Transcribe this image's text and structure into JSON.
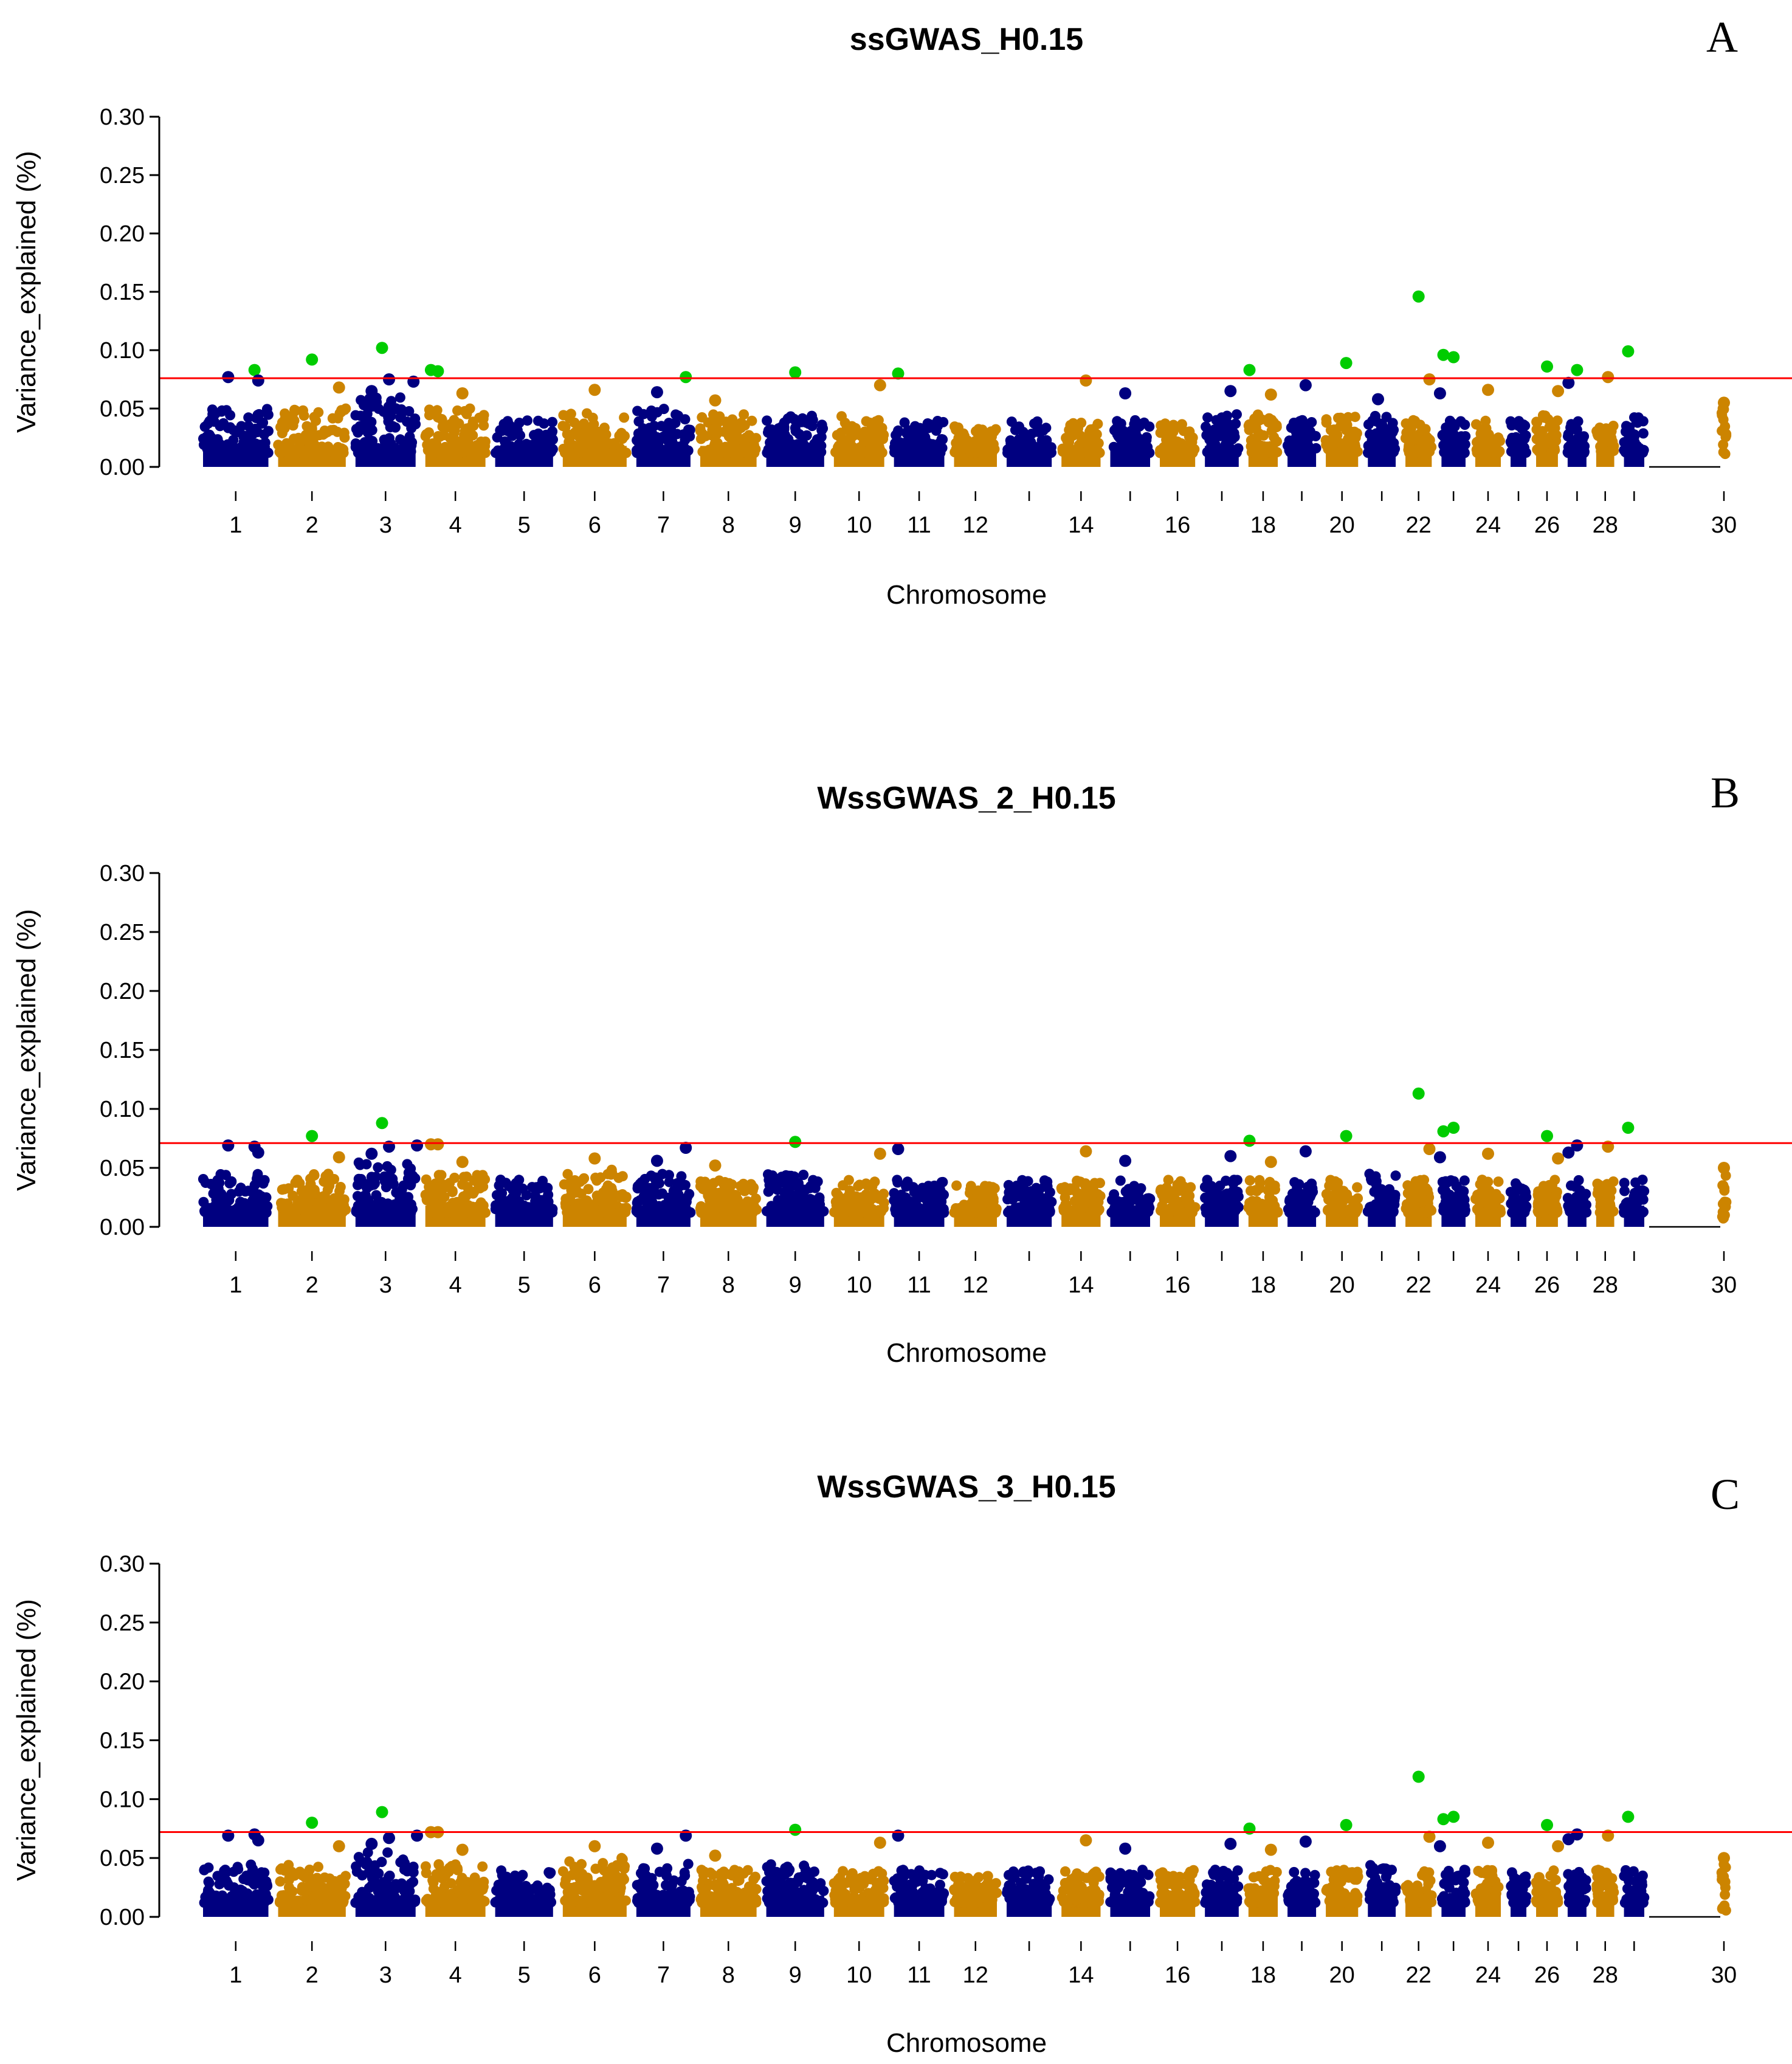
{
  "colors": {
    "navy": "#000080",
    "orange": "#CC8400",
    "green": "#00CC00",
    "threshold": "#FF0000",
    "axis": "#000000"
  },
  "chart_data": [
    {
      "type": "scatter",
      "panel": "A",
      "title": "ssGWAS_H0.15",
      "xlabel": "Chromosome",
      "ylabel": "Variance_explained (%)",
      "ylim": [
        0,
        0.3
      ],
      "yticks": [
        "0.00",
        "0.05",
        "0.10",
        "0.15",
        "0.20",
        "0.25",
        "0.30"
      ],
      "threshold": 0.076,
      "chromosome_tick_labels": [
        "1",
        "2",
        "3",
        "4",
        "5",
        "6",
        "7",
        "8",
        "9",
        "10",
        "11",
        "12",
        "14",
        "16",
        "18",
        "20",
        "22",
        "24",
        "26",
        "28",
        "30"
      ],
      "background_max": [
        0.05,
        0.05,
        0.06,
        0.05,
        0.04,
        0.05,
        0.05,
        0.045,
        0.045,
        0.045,
        0.04,
        0.035,
        0.04,
        0.04,
        0.04,
        0.04,
        0.045,
        0.045,
        0.04,
        0.045,
        0.045,
        0.04,
        0.04,
        0.04,
        0.04,
        0.045,
        0.04,
        0.045,
        0.045,
        0.045
      ],
      "highlight_points": [
        {
          "chr": 1,
          "pos": 0.4,
          "value": 0.077,
          "color": "navy"
        },
        {
          "chr": 1,
          "pos": 0.75,
          "value": 0.083,
          "color": "green"
        },
        {
          "chr": 1,
          "pos": 0.8,
          "value": 0.074,
          "color": "navy"
        },
        {
          "chr": 2,
          "pos": 0.5,
          "value": 0.092,
          "color": "green"
        },
        {
          "chr": 2,
          "pos": 0.85,
          "value": 0.068,
          "color": "orange"
        },
        {
          "chr": 3,
          "pos": 0.3,
          "value": 0.065,
          "color": "navy"
        },
        {
          "chr": 3,
          "pos": 0.45,
          "value": 0.102,
          "color": "green"
        },
        {
          "chr": 3,
          "pos": 0.55,
          "value": 0.075,
          "color": "navy"
        },
        {
          "chr": 3,
          "pos": 0.9,
          "value": 0.073,
          "color": "navy"
        },
        {
          "chr": 4,
          "pos": 0.15,
          "value": 0.083,
          "color": "green"
        },
        {
          "chr": 4,
          "pos": 0.25,
          "value": 0.082,
          "color": "green"
        },
        {
          "chr": 4,
          "pos": 0.6,
          "value": 0.063,
          "color": "orange"
        },
        {
          "chr": 6,
          "pos": 0.5,
          "value": 0.066,
          "color": "orange"
        },
        {
          "chr": 7,
          "pos": 0.4,
          "value": 0.064,
          "color": "navy"
        },
        {
          "chr": 7,
          "pos": 0.85,
          "value": 0.077,
          "color": "green"
        },
        {
          "chr": 8,
          "pos": 0.3,
          "value": 0.057,
          "color": "orange"
        },
        {
          "chr": 9,
          "pos": 0.5,
          "value": 0.081,
          "color": "green"
        },
        {
          "chr": 10,
          "pos": 0.85,
          "value": 0.07,
          "color": "orange"
        },
        {
          "chr": 11,
          "pos": 0.15,
          "value": 0.08,
          "color": "green"
        },
        {
          "chr": 14,
          "pos": 0.6,
          "value": 0.074,
          "color": "orange"
        },
        {
          "chr": 15,
          "pos": 0.4,
          "value": 0.063,
          "color": "navy"
        },
        {
          "chr": 17,
          "pos": 0.7,
          "value": 0.065,
          "color": "navy"
        },
        {
          "chr": 18,
          "pos": 0.15,
          "value": 0.083,
          "color": "green"
        },
        {
          "chr": 18,
          "pos": 0.7,
          "value": 0.062,
          "color": "orange"
        },
        {
          "chr": 19,
          "pos": 0.6,
          "value": 0.07,
          "color": "navy"
        },
        {
          "chr": 20,
          "pos": 0.6,
          "value": 0.089,
          "color": "green"
        },
        {
          "chr": 21,
          "pos": 0.4,
          "value": 0.058,
          "color": "navy"
        },
        {
          "chr": 22,
          "pos": 0.5,
          "value": 0.146,
          "color": "green"
        },
        {
          "chr": 22,
          "pos": 0.8,
          "value": 0.075,
          "color": "orange"
        },
        {
          "chr": 23,
          "pos": 0.2,
          "value": 0.096,
          "color": "green"
        },
        {
          "chr": 23,
          "pos": 0.5,
          "value": 0.094,
          "color": "green"
        },
        {
          "chr": 23,
          "pos": 0.1,
          "value": 0.063,
          "color": "navy"
        },
        {
          "chr": 24,
          "pos": 0.5,
          "value": 0.066,
          "color": "orange"
        },
        {
          "chr": 26,
          "pos": 0.5,
          "value": 0.086,
          "color": "green"
        },
        {
          "chr": 26,
          "pos": 0.85,
          "value": 0.065,
          "color": "orange"
        },
        {
          "chr": 27,
          "pos": 0.2,
          "value": 0.072,
          "color": "navy"
        },
        {
          "chr": 27,
          "pos": 0.5,
          "value": 0.083,
          "color": "green"
        },
        {
          "chr": 28,
          "pos": 0.6,
          "value": 0.077,
          "color": "orange"
        },
        {
          "chr": 29,
          "pos": 0.3,
          "value": 0.099,
          "color": "green"
        },
        {
          "chr": 30,
          "pos": 0.5,
          "value": 0.055,
          "color": "orange"
        }
      ]
    },
    {
      "type": "scatter",
      "panel": "B",
      "title": "WssGWAS_2_H0.15",
      "xlabel": "Chromosome",
      "ylabel": "Variance_explained (%)",
      "ylim": [
        0,
        0.3
      ],
      "yticks": [
        "0.00",
        "0.05",
        "0.10",
        "0.15",
        "0.20",
        "0.25",
        "0.30"
      ],
      "threshold": 0.071,
      "chromosome_tick_labels": [
        "1",
        "2",
        "3",
        "4",
        "5",
        "6",
        "7",
        "8",
        "9",
        "10",
        "11",
        "12",
        "14",
        "16",
        "18",
        "20",
        "22",
        "24",
        "26",
        "28",
        "30"
      ],
      "background_max": [
        0.045,
        0.045,
        0.055,
        0.045,
        0.04,
        0.05,
        0.045,
        0.04,
        0.045,
        0.04,
        0.04,
        0.035,
        0.04,
        0.04,
        0.04,
        0.04,
        0.04,
        0.04,
        0.04,
        0.04,
        0.045,
        0.04,
        0.04,
        0.04,
        0.04,
        0.04,
        0.04,
        0.04,
        0.04,
        0.04
      ],
      "highlight_points": [
        {
          "chr": 1,
          "pos": 0.4,
          "value": 0.069,
          "color": "navy"
        },
        {
          "chr": 1,
          "pos": 0.75,
          "value": 0.068,
          "color": "navy"
        },
        {
          "chr": 1,
          "pos": 0.8,
          "value": 0.063,
          "color": "navy"
        },
        {
          "chr": 2,
          "pos": 0.5,
          "value": 0.077,
          "color": "green"
        },
        {
          "chr": 2,
          "pos": 0.85,
          "value": 0.059,
          "color": "orange"
        },
        {
          "chr": 3,
          "pos": 0.3,
          "value": 0.062,
          "color": "navy"
        },
        {
          "chr": 3,
          "pos": 0.45,
          "value": 0.088,
          "color": "green"
        },
        {
          "chr": 3,
          "pos": 0.55,
          "value": 0.068,
          "color": "navy"
        },
        {
          "chr": 3,
          "pos": 0.95,
          "value": 0.069,
          "color": "navy"
        },
        {
          "chr": 4,
          "pos": 0.15,
          "value": 0.07,
          "color": "orange"
        },
        {
          "chr": 4,
          "pos": 0.25,
          "value": 0.07,
          "color": "orange"
        },
        {
          "chr": 4,
          "pos": 0.6,
          "value": 0.055,
          "color": "orange"
        },
        {
          "chr": 6,
          "pos": 0.5,
          "value": 0.058,
          "color": "orange"
        },
        {
          "chr": 7,
          "pos": 0.4,
          "value": 0.056,
          "color": "navy"
        },
        {
          "chr": 7,
          "pos": 0.85,
          "value": 0.067,
          "color": "navy"
        },
        {
          "chr": 8,
          "pos": 0.3,
          "value": 0.052,
          "color": "orange"
        },
        {
          "chr": 9,
          "pos": 0.5,
          "value": 0.072,
          "color": "green"
        },
        {
          "chr": 10,
          "pos": 0.85,
          "value": 0.062,
          "color": "orange"
        },
        {
          "chr": 11,
          "pos": 0.15,
          "value": 0.066,
          "color": "navy"
        },
        {
          "chr": 14,
          "pos": 0.6,
          "value": 0.064,
          "color": "orange"
        },
        {
          "chr": 15,
          "pos": 0.4,
          "value": 0.056,
          "color": "navy"
        },
        {
          "chr": 17,
          "pos": 0.7,
          "value": 0.06,
          "color": "navy"
        },
        {
          "chr": 18,
          "pos": 0.15,
          "value": 0.073,
          "color": "green"
        },
        {
          "chr": 18,
          "pos": 0.7,
          "value": 0.055,
          "color": "orange"
        },
        {
          "chr": 19,
          "pos": 0.6,
          "value": 0.064,
          "color": "navy"
        },
        {
          "chr": 20,
          "pos": 0.6,
          "value": 0.077,
          "color": "green"
        },
        {
          "chr": 22,
          "pos": 0.5,
          "value": 0.113,
          "color": "green"
        },
        {
          "chr": 22,
          "pos": 0.8,
          "value": 0.066,
          "color": "orange"
        },
        {
          "chr": 23,
          "pos": 0.2,
          "value": 0.081,
          "color": "green"
        },
        {
          "chr": 23,
          "pos": 0.5,
          "value": 0.084,
          "color": "green"
        },
        {
          "chr": 23,
          "pos": 0.1,
          "value": 0.059,
          "color": "navy"
        },
        {
          "chr": 24,
          "pos": 0.5,
          "value": 0.062,
          "color": "orange"
        },
        {
          "chr": 26,
          "pos": 0.5,
          "value": 0.077,
          "color": "green"
        },
        {
          "chr": 26,
          "pos": 0.85,
          "value": 0.058,
          "color": "orange"
        },
        {
          "chr": 27,
          "pos": 0.2,
          "value": 0.063,
          "color": "navy"
        },
        {
          "chr": 27,
          "pos": 0.5,
          "value": 0.069,
          "color": "navy"
        },
        {
          "chr": 28,
          "pos": 0.6,
          "value": 0.068,
          "color": "orange"
        },
        {
          "chr": 29,
          "pos": 0.3,
          "value": 0.084,
          "color": "green"
        },
        {
          "chr": 30,
          "pos": 0.5,
          "value": 0.05,
          "color": "orange"
        }
      ]
    },
    {
      "type": "scatter",
      "panel": "C",
      "title": "WssGWAS_3_H0.15",
      "xlabel": "Chromosome",
      "ylabel": "Variance_explained (%)",
      "ylim": [
        0,
        0.3
      ],
      "yticks": [
        "0.00",
        "0.05",
        "0.10",
        "0.15",
        "0.20",
        "0.25",
        "0.30"
      ],
      "threshold": 0.072,
      "chromosome_tick_labels": [
        "1",
        "2",
        "3",
        "4",
        "5",
        "6",
        "7",
        "8",
        "9",
        "10",
        "11",
        "12",
        "14",
        "16",
        "18",
        "20",
        "22",
        "24",
        "26",
        "28",
        "30"
      ],
      "background_max": [
        0.045,
        0.045,
        0.055,
        0.045,
        0.04,
        0.05,
        0.045,
        0.04,
        0.045,
        0.04,
        0.04,
        0.035,
        0.04,
        0.04,
        0.04,
        0.04,
        0.04,
        0.04,
        0.04,
        0.04,
        0.045,
        0.04,
        0.04,
        0.04,
        0.04,
        0.04,
        0.04,
        0.04,
        0.04,
        0.04
      ],
      "highlight_points": [
        {
          "chr": 1,
          "pos": 0.4,
          "value": 0.069,
          "color": "navy"
        },
        {
          "chr": 1,
          "pos": 0.75,
          "value": 0.07,
          "color": "navy"
        },
        {
          "chr": 1,
          "pos": 0.8,
          "value": 0.065,
          "color": "navy"
        },
        {
          "chr": 2,
          "pos": 0.5,
          "value": 0.08,
          "color": "green"
        },
        {
          "chr": 2,
          "pos": 0.85,
          "value": 0.06,
          "color": "orange"
        },
        {
          "chr": 3,
          "pos": 0.3,
          "value": 0.062,
          "color": "navy"
        },
        {
          "chr": 3,
          "pos": 0.45,
          "value": 0.089,
          "color": "green"
        },
        {
          "chr": 3,
          "pos": 0.55,
          "value": 0.067,
          "color": "navy"
        },
        {
          "chr": 3,
          "pos": 0.95,
          "value": 0.069,
          "color": "navy"
        },
        {
          "chr": 4,
          "pos": 0.15,
          "value": 0.072,
          "color": "orange"
        },
        {
          "chr": 4,
          "pos": 0.25,
          "value": 0.072,
          "color": "orange"
        },
        {
          "chr": 4,
          "pos": 0.6,
          "value": 0.057,
          "color": "orange"
        },
        {
          "chr": 6,
          "pos": 0.5,
          "value": 0.06,
          "color": "orange"
        },
        {
          "chr": 7,
          "pos": 0.4,
          "value": 0.058,
          "color": "navy"
        },
        {
          "chr": 7,
          "pos": 0.85,
          "value": 0.069,
          "color": "navy"
        },
        {
          "chr": 8,
          "pos": 0.3,
          "value": 0.052,
          "color": "orange"
        },
        {
          "chr": 9,
          "pos": 0.5,
          "value": 0.074,
          "color": "green"
        },
        {
          "chr": 10,
          "pos": 0.85,
          "value": 0.063,
          "color": "orange"
        },
        {
          "chr": 11,
          "pos": 0.15,
          "value": 0.069,
          "color": "navy"
        },
        {
          "chr": 14,
          "pos": 0.6,
          "value": 0.065,
          "color": "orange"
        },
        {
          "chr": 15,
          "pos": 0.4,
          "value": 0.058,
          "color": "navy"
        },
        {
          "chr": 17,
          "pos": 0.7,
          "value": 0.062,
          "color": "navy"
        },
        {
          "chr": 18,
          "pos": 0.15,
          "value": 0.075,
          "color": "green"
        },
        {
          "chr": 18,
          "pos": 0.7,
          "value": 0.057,
          "color": "orange"
        },
        {
          "chr": 19,
          "pos": 0.6,
          "value": 0.064,
          "color": "navy"
        },
        {
          "chr": 20,
          "pos": 0.6,
          "value": 0.078,
          "color": "green"
        },
        {
          "chr": 22,
          "pos": 0.5,
          "value": 0.119,
          "color": "green"
        },
        {
          "chr": 22,
          "pos": 0.8,
          "value": 0.068,
          "color": "orange"
        },
        {
          "chr": 23,
          "pos": 0.2,
          "value": 0.083,
          "color": "green"
        },
        {
          "chr": 23,
          "pos": 0.5,
          "value": 0.085,
          "color": "green"
        },
        {
          "chr": 23,
          "pos": 0.1,
          "value": 0.06,
          "color": "navy"
        },
        {
          "chr": 24,
          "pos": 0.5,
          "value": 0.063,
          "color": "orange"
        },
        {
          "chr": 26,
          "pos": 0.5,
          "value": 0.078,
          "color": "green"
        },
        {
          "chr": 26,
          "pos": 0.85,
          "value": 0.06,
          "color": "orange"
        },
        {
          "chr": 27,
          "pos": 0.2,
          "value": 0.066,
          "color": "navy"
        },
        {
          "chr": 27,
          "pos": 0.5,
          "value": 0.07,
          "color": "navy"
        },
        {
          "chr": 28,
          "pos": 0.6,
          "value": 0.069,
          "color": "orange"
        },
        {
          "chr": 29,
          "pos": 0.3,
          "value": 0.085,
          "color": "green"
        },
        {
          "chr": 30,
          "pos": 0.5,
          "value": 0.05,
          "color": "orange"
        }
      ]
    }
  ]
}
